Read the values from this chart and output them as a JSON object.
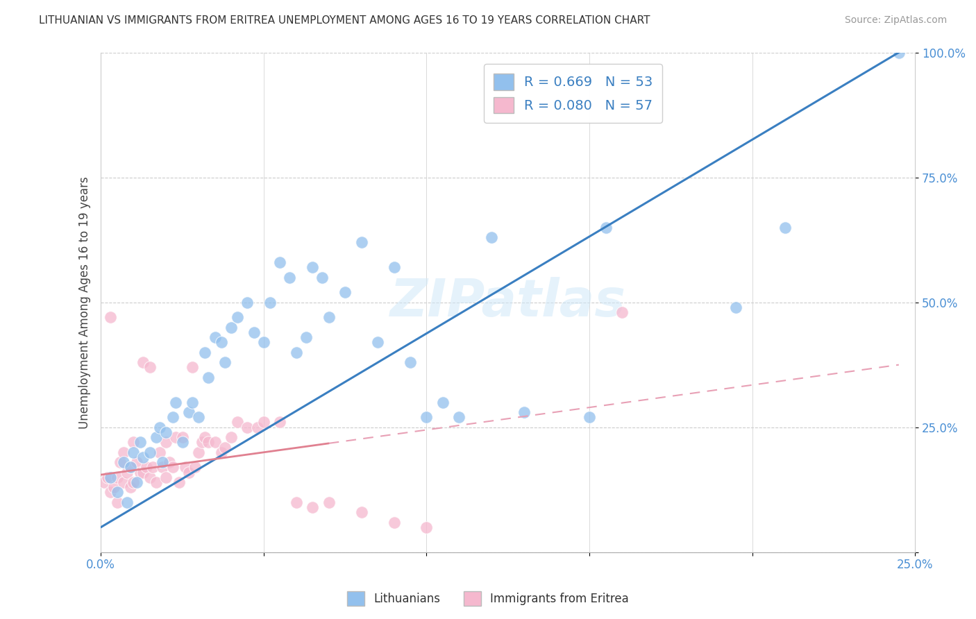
{
  "title": "LITHUANIAN VS IMMIGRANTS FROM ERITREA UNEMPLOYMENT AMONG AGES 16 TO 19 YEARS CORRELATION CHART",
  "source": "Source: ZipAtlas.com",
  "ylabel": "Unemployment Among Ages 16 to 19 years",
  "xlim": [
    0.0,
    0.25
  ],
  "ylim": [
    0.0,
    1.0
  ],
  "xticks": [
    0.0,
    0.05,
    0.1,
    0.15,
    0.2,
    0.25
  ],
  "yticks": [
    0.0,
    0.25,
    0.5,
    0.75,
    1.0
  ],
  "xtick_labels": [
    "0.0%",
    "",
    "",
    "",
    "",
    "25.0%"
  ],
  "ytick_labels": [
    "",
    "25.0%",
    "50.0%",
    "75.0%",
    "100.0%"
  ],
  "blue_R": 0.669,
  "blue_N": 53,
  "pink_R": 0.08,
  "pink_N": 57,
  "blue_color": "#92c0ed",
  "pink_color": "#f5b8ce",
  "blue_line_color": "#3a7fc1",
  "pink_line_color": "#e08090",
  "pink_line_dash_color": "#e8a0b5",
  "legend_labels": [
    "Lithuanians",
    "Immigrants from Eritrea"
  ],
  "watermark": "ZIPatlas",
  "blue_scatter_x": [
    0.003,
    0.005,
    0.007,
    0.008,
    0.009,
    0.01,
    0.011,
    0.012,
    0.013,
    0.015,
    0.017,
    0.018,
    0.019,
    0.02,
    0.022,
    0.023,
    0.025,
    0.027,
    0.028,
    0.03,
    0.032,
    0.033,
    0.035,
    0.037,
    0.038,
    0.04,
    0.042,
    0.045,
    0.047,
    0.05,
    0.052,
    0.055,
    0.058,
    0.06,
    0.063,
    0.065,
    0.068,
    0.07,
    0.075,
    0.08,
    0.085,
    0.09,
    0.095,
    0.1,
    0.105,
    0.11,
    0.12,
    0.13,
    0.15,
    0.155,
    0.195,
    0.21,
    0.245
  ],
  "blue_scatter_y": [
    0.15,
    0.12,
    0.18,
    0.1,
    0.17,
    0.2,
    0.14,
    0.22,
    0.19,
    0.2,
    0.23,
    0.25,
    0.18,
    0.24,
    0.27,
    0.3,
    0.22,
    0.28,
    0.3,
    0.27,
    0.4,
    0.35,
    0.43,
    0.42,
    0.38,
    0.45,
    0.47,
    0.5,
    0.44,
    0.42,
    0.5,
    0.58,
    0.55,
    0.4,
    0.43,
    0.57,
    0.55,
    0.47,
    0.52,
    0.62,
    0.42,
    0.57,
    0.38,
    0.27,
    0.3,
    0.27,
    0.63,
    0.28,
    0.27,
    0.65,
    0.49,
    0.65,
    1.0
  ],
  "pink_scatter_x": [
    0.001,
    0.002,
    0.003,
    0.003,
    0.004,
    0.005,
    0.005,
    0.006,
    0.007,
    0.007,
    0.008,
    0.009,
    0.009,
    0.01,
    0.01,
    0.011,
    0.012,
    0.013,
    0.013,
    0.014,
    0.015,
    0.015,
    0.016,
    0.017,
    0.018,
    0.019,
    0.02,
    0.02,
    0.021,
    0.022,
    0.023,
    0.024,
    0.025,
    0.026,
    0.027,
    0.028,
    0.029,
    0.03,
    0.031,
    0.032,
    0.033,
    0.035,
    0.037,
    0.038,
    0.04,
    0.042,
    0.045,
    0.048,
    0.05,
    0.055,
    0.06,
    0.065,
    0.07,
    0.08,
    0.09,
    0.1,
    0.16
  ],
  "pink_scatter_y": [
    0.14,
    0.15,
    0.12,
    0.47,
    0.13,
    0.15,
    0.1,
    0.18,
    0.14,
    0.2,
    0.16,
    0.13,
    0.17,
    0.22,
    0.14,
    0.18,
    0.16,
    0.38,
    0.16,
    0.17,
    0.37,
    0.15,
    0.17,
    0.14,
    0.2,
    0.17,
    0.22,
    0.15,
    0.18,
    0.17,
    0.23,
    0.14,
    0.23,
    0.17,
    0.16,
    0.37,
    0.17,
    0.2,
    0.22,
    0.23,
    0.22,
    0.22,
    0.2,
    0.21,
    0.23,
    0.26,
    0.25,
    0.25,
    0.26,
    0.26,
    0.1,
    0.09,
    0.1,
    0.08,
    0.06,
    0.05,
    0.48
  ],
  "blue_line_x": [
    0.0,
    0.245
  ],
  "blue_line_y": [
    0.05,
    1.0
  ],
  "pink_line_x": [
    0.0,
    0.245
  ],
  "pink_line_y": [
    0.155,
    0.375
  ]
}
